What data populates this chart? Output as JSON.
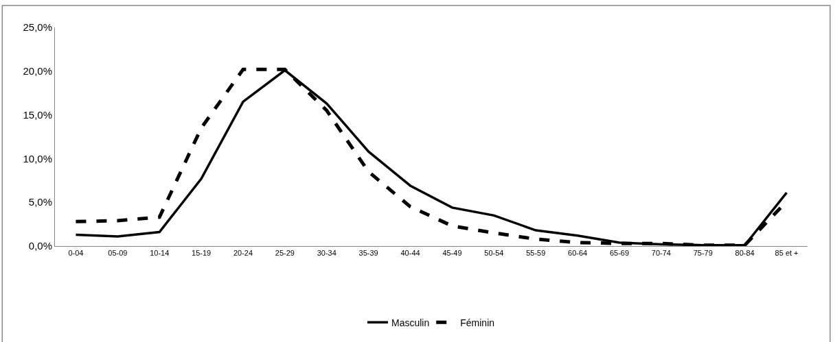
{
  "chart_data": {
    "type": "line",
    "categories": [
      "0-04",
      "05-09",
      "10-14",
      "15-19",
      "20-24",
      "25-29",
      "30-34",
      "35-39",
      "40-44",
      "45-49",
      "50-54",
      "55-59",
      "60-64",
      "65-69",
      "70-74",
      "75-79",
      "80-84",
      "85 et +"
    ],
    "series": [
      {
        "name": "Masculin",
        "color": "#000000",
        "line_style": "solid",
        "values": [
          1.3,
          1.1,
          1.6,
          7.7,
          16.5,
          20.1,
          16.3,
          10.8,
          6.9,
          4.4,
          3.5,
          1.8,
          1.2,
          0.4,
          0.2,
          0.1,
          0.1,
          6.1
        ]
      },
      {
        "name": "Féminin",
        "color": "#000000",
        "line_style": "dashed",
        "values": [
          2.8,
          2.9,
          3.3,
          13.5,
          20.2,
          20.2,
          15.5,
          8.5,
          4.5,
          2.3,
          1.5,
          0.8,
          0.4,
          0.3,
          0.3,
          0.1,
          0.1,
          5.1
        ]
      }
    ],
    "ylim": [
      0,
      25
    ],
    "yticks": [
      {
        "value": 0,
        "label": "0,0%"
      },
      {
        "value": 5,
        "label": "5,0%"
      },
      {
        "value": 10,
        "label": "10,0%"
      },
      {
        "value": 15,
        "label": "15,0%"
      },
      {
        "value": 20,
        "label": "20,0%"
      },
      {
        "value": 25,
        "label": "25,0%"
      }
    ],
    "legend": "bottom",
    "marker": "none"
  }
}
